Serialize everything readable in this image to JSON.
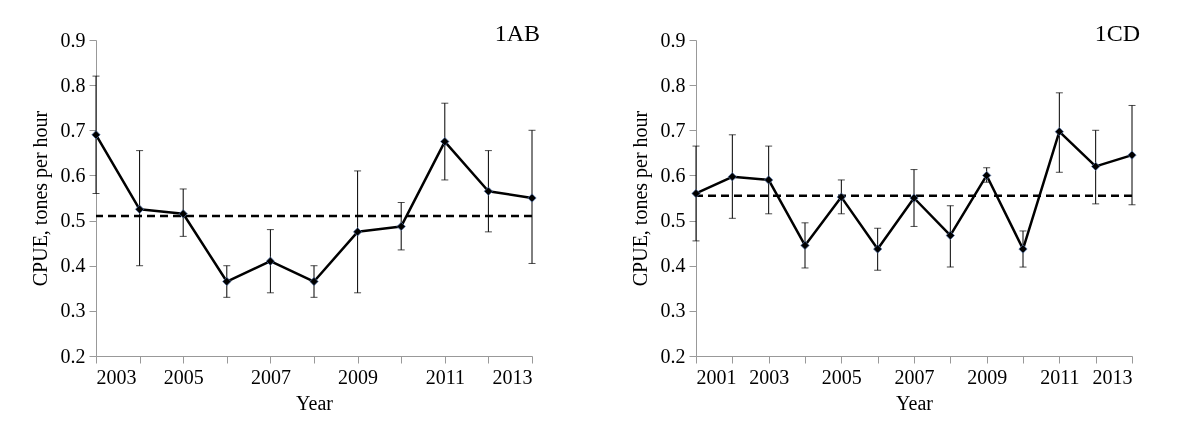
{
  "chart_data": [
    {
      "type": "line",
      "annotations": [
        "1AB"
      ],
      "xlabel": "Year",
      "ylabel": "CPUE, tones per hour",
      "x": [
        2003,
        2004,
        2005,
        2006,
        2007,
        2008,
        2009,
        2010,
        2011,
        2012,
        2013
      ],
      "series": [
        {
          "color": "#000000",
          "values": [
            0.69,
            0.525,
            0.515,
            0.365,
            0.41,
            0.365,
            0.475,
            0.487,
            0.675,
            0.565,
            0.55
          ],
          "errors": [
            [
              0.56,
              0.82
            ],
            [
              0.4,
              0.655
            ],
            [
              0.465,
              0.57
            ],
            [
              0.33,
              0.4
            ],
            [
              0.34,
              0.48
            ],
            [
              0.33,
              0.4
            ],
            [
              0.34,
              0.61
            ],
            [
              0.435,
              0.54
            ],
            [
              0.59,
              0.76
            ],
            [
              0.475,
              0.655
            ],
            [
              0.405,
              0.7
            ]
          ]
        }
      ],
      "ref_lines": [
        {
          "axis": "y",
          "value": 0.51,
          "line_style": "dashed",
          "color": "#000000"
        }
      ],
      "xlim": [
        2003,
        2013
      ],
      "xticks": [
        2003,
        {
          "value": 2004,
          "label": null
        },
        2005,
        {
          "value": 2006,
          "label": null
        },
        2007,
        {
          "value": 2008,
          "label": null
        },
        2009,
        {
          "value": 2010,
          "label": null
        },
        2011,
        {
          "value": 2012,
          "label": null
        },
        2013
      ],
      "ylim": [
        0.2,
        0.9
      ],
      "yticks": [
        0.2,
        0.3,
        0.4,
        0.5,
        0.6,
        0.7,
        0.8,
        0.9
      ],
      "grid": false,
      "legend": false,
      "marker": "diamond",
      "line_style": "solid"
    },
    {
      "type": "line",
      "annotations": [
        "1CD"
      ],
      "xlabel": "Year",
      "ylabel": "CPUE, tones per hour",
      "x": [
        2001,
        2002,
        2003,
        2004,
        2005,
        2006,
        2007,
        2008,
        2009,
        2010,
        2011,
        2012,
        2013
      ],
      "series": [
        {
          "color": "#000000",
          "values": [
            0.56,
            0.597,
            0.59,
            0.445,
            0.552,
            0.437,
            0.55,
            0.467,
            0.6,
            0.437,
            0.697,
            0.62,
            0.645
          ],
          "errors": [
            [
              0.455,
              0.665
            ],
            [
              0.505,
              0.69
            ],
            [
              0.515,
              0.665
            ],
            [
              0.395,
              0.495
            ],
            [
              0.515,
              0.59
            ],
            [
              0.39,
              0.483
            ],
            [
              0.487,
              0.613
            ],
            [
              0.397,
              0.533
            ],
            [
              0.585,
              0.617
            ],
            [
              0.397,
              0.477
            ],
            [
              0.607,
              0.783
            ],
            [
              0.537,
              0.7
            ],
            [
              0.535,
              0.755
            ]
          ]
        }
      ],
      "ref_lines": [
        {
          "axis": "y",
          "value": 0.555,
          "line_style": "dashed",
          "color": "#000000"
        }
      ],
      "xlim": [
        2001,
        2013
      ],
      "xticks": [
        2001,
        {
          "value": 2002,
          "label": null
        },
        2003,
        {
          "value": 2004,
          "label": null
        },
        2005,
        {
          "value": 2006,
          "label": null
        },
        2007,
        {
          "value": 2008,
          "label": null
        },
        2009,
        {
          "value": 2010,
          "label": null
        },
        2011,
        {
          "value": 2012,
          "label": null
        },
        2013
      ],
      "ylim": [
        0.2,
        0.9
      ],
      "yticks": [
        0.2,
        0.3,
        0.4,
        0.5,
        0.6,
        0.7,
        0.8,
        0.9
      ],
      "grid": false,
      "legend": false,
      "marker": "diamond",
      "line_style": "solid"
    }
  ]
}
